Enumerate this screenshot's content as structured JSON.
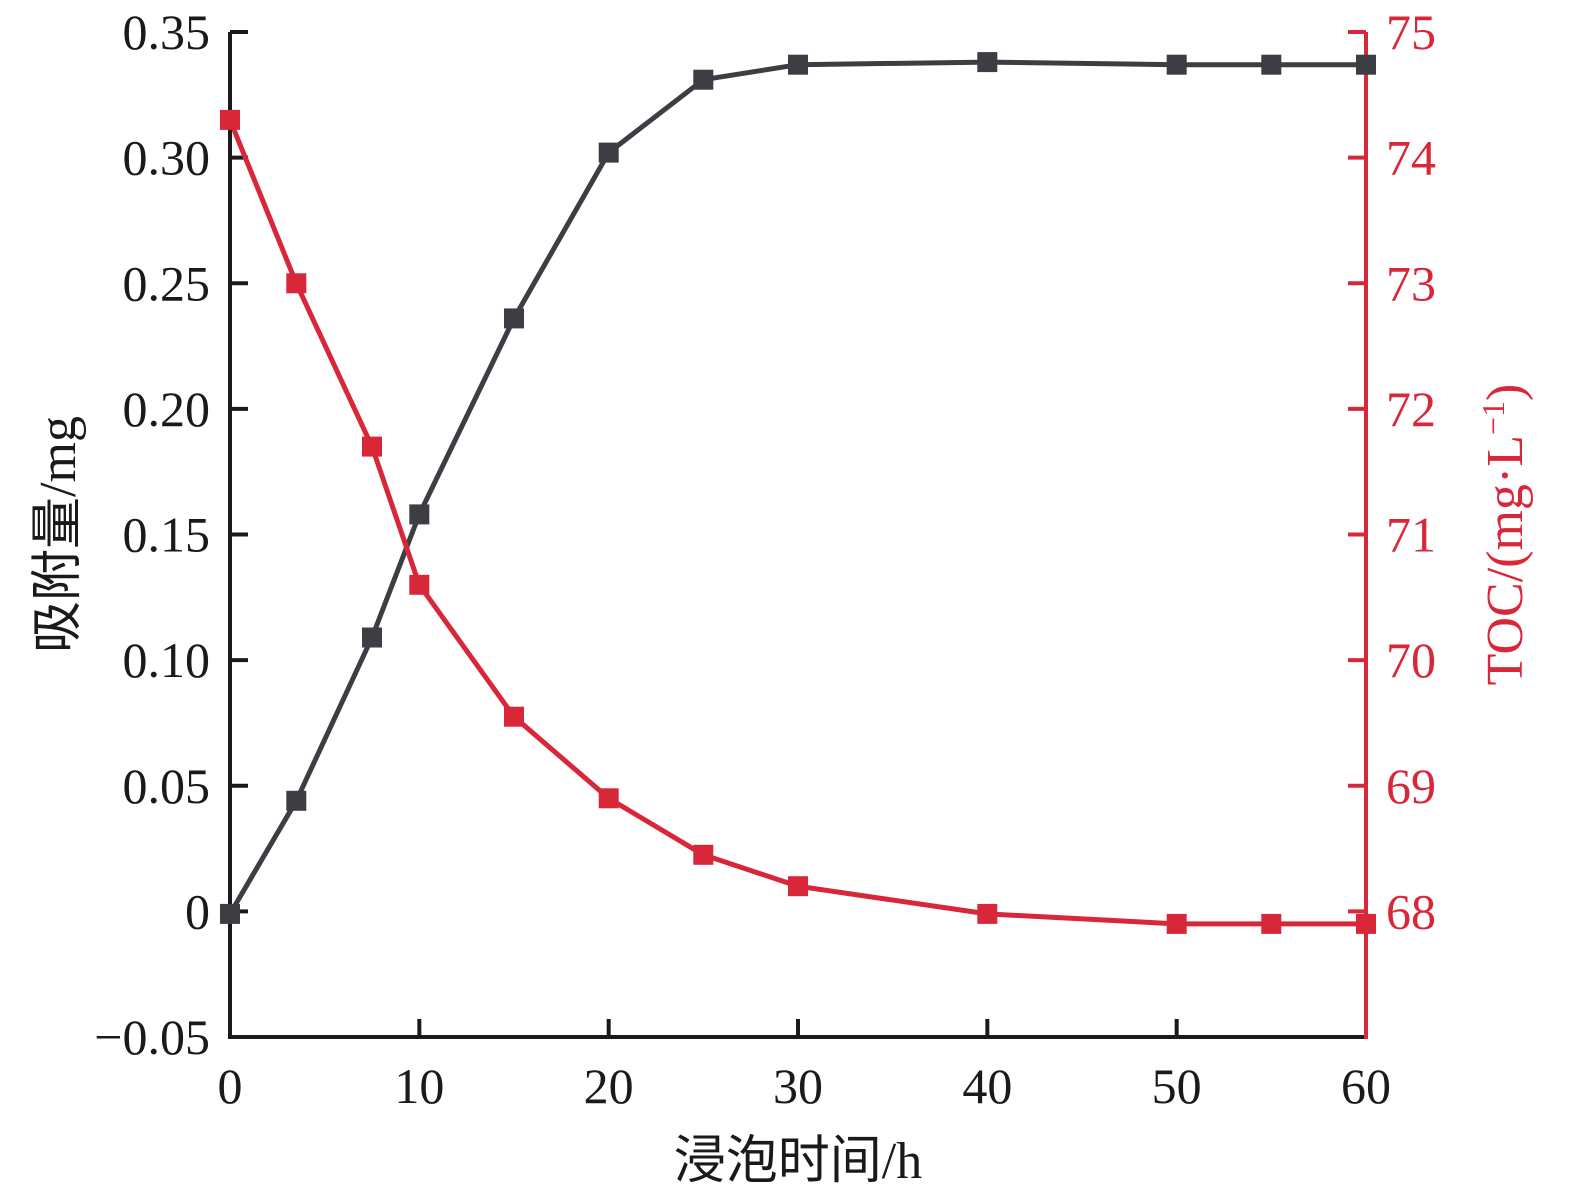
{
  "chart_data": {
    "type": "line",
    "xlabel": "浸泡时间/h",
    "ylabel_left": "吸附量/mg",
    "ylabel_right": "TOC/(mg·L",
    "ylabel_right_sup": "−1",
    "ylabel_right_close": ")",
    "xlim": [
      0,
      60
    ],
    "ylim_left": [
      -0.05,
      0.35
    ],
    "ylim_right": [
      67,
      75
    ],
    "x_ticks": [
      0,
      10,
      20,
      30,
      40,
      50,
      60
    ],
    "x_tick_labels": [
      "0",
      "10",
      "20",
      "30",
      "40",
      "50",
      "60"
    ],
    "y_left_ticks": [
      -0.05,
      0,
      0.05,
      0.1,
      0.15,
      0.2,
      0.25,
      0.3,
      0.35
    ],
    "y_left_tick_labels": [
      "−0.05",
      "0",
      "0.05",
      "0.10",
      "0.15",
      "0.20",
      "0.25",
      "0.30",
      "0.35"
    ],
    "y_right_ticks": [
      68,
      69,
      70,
      71,
      72,
      73,
      74,
      75
    ],
    "y_right_tick_labels": [
      "68",
      "69",
      "70",
      "71",
      "72",
      "73",
      "74",
      "75"
    ],
    "series": [
      {
        "axis": "left",
        "color": "#3d3e44",
        "marker": "square",
        "x": [
          0,
          3.5,
          7.5,
          10,
          15,
          20,
          25,
          30,
          40,
          50,
          55,
          60
        ],
        "y": [
          -0.001,
          0.044,
          0.109,
          0.158,
          0.236,
          0.302,
          0.331,
          0.337,
          0.338,
          0.337,
          0.337,
          0.337
        ]
      },
      {
        "axis": "right",
        "color": "#d9273a",
        "marker": "square",
        "x": [
          0,
          3.5,
          7.5,
          10,
          15,
          20,
          25,
          30,
          40,
          50,
          55,
          60
        ],
        "y": [
          74.3,
          73.0,
          71.7,
          70.6,
          69.55,
          68.9,
          68.45,
          68.2,
          67.98,
          67.9,
          67.9,
          67.9
        ]
      }
    ],
    "axis_color_left": "#1a1a1a",
    "axis_color_right": "#d9273a",
    "grid": false
  }
}
